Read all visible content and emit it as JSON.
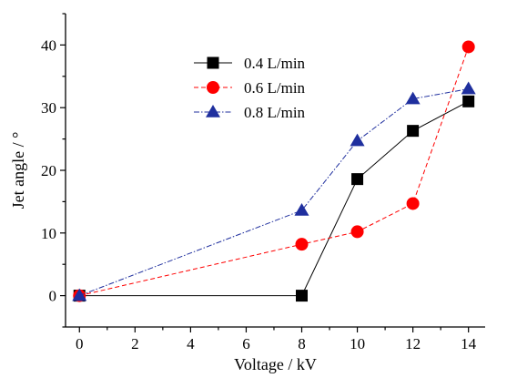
{
  "chart_data": {
    "type": "line",
    "title": "",
    "xlabel": "Voltage / kV",
    "ylabel": "Jet angle / °",
    "xlim": [
      -0.5,
      14.6
    ],
    "ylim": [
      -5,
      45
    ],
    "xticks": [
      0,
      2,
      4,
      6,
      8,
      10,
      12,
      14
    ],
    "yticks": [
      0,
      10,
      20,
      30,
      40
    ],
    "grid": false,
    "legend_position": "top-center",
    "series": [
      {
        "name": "0.4 L/min",
        "color": "#000000",
        "marker": "square",
        "dash": "solid",
        "x": [
          0,
          8,
          10,
          12,
          14
        ],
        "y": [
          0,
          0,
          18.6,
          26.3,
          31
        ]
      },
      {
        "name": "0.6 L/min",
        "color": "#ff0000",
        "marker": "circle",
        "dash": "dashed",
        "x": [
          0,
          8,
          10,
          12,
          14
        ],
        "y": [
          0,
          8.2,
          10.2,
          14.7,
          39.7
        ]
      },
      {
        "name": "0.8 L/min",
        "color": "#1f2f9e",
        "marker": "triangle",
        "dash": "dashdot",
        "x": [
          0,
          8,
          10,
          12,
          14
        ],
        "y": [
          0,
          13.6,
          24.7,
          31.4,
          33
        ]
      }
    ]
  }
}
